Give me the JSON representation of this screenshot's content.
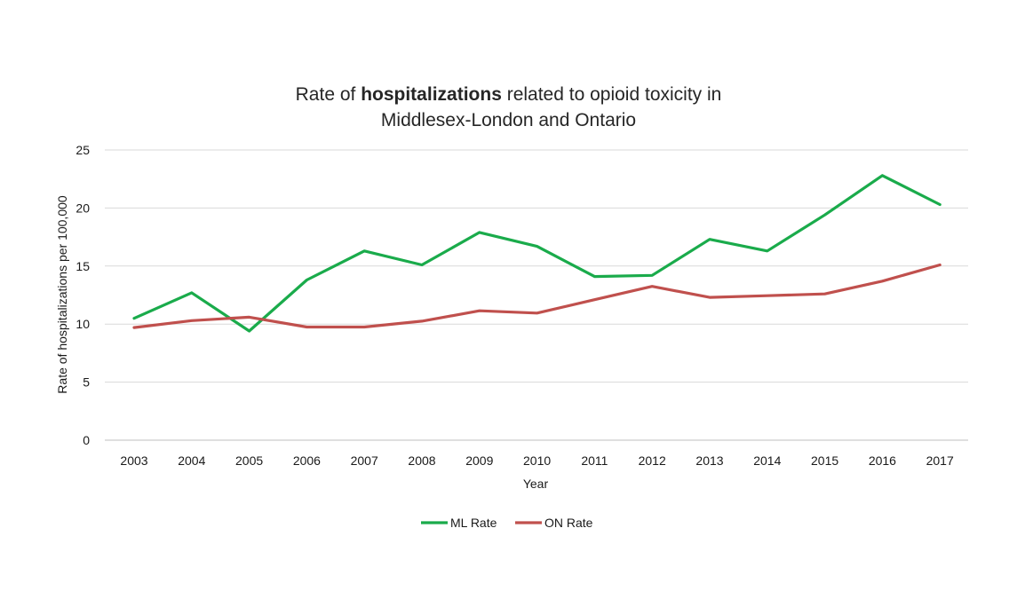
{
  "chart_data": {
    "type": "line",
    "title_parts": {
      "pre": "Rate of ",
      "bold": "hospitalizations",
      "post": " related to opioid toxicity in",
      "line2": "Middlesex-London and Ontario"
    },
    "xlabel": "Year",
    "ylabel": "Rate of hospitalizations per 100,000",
    "ylim": [
      0,
      25
    ],
    "yticks": [
      0,
      5,
      10,
      15,
      20,
      25
    ],
    "grid": true,
    "legend_position": "bottom",
    "categories": [
      "2003",
      "2004",
      "2005",
      "2006",
      "2007",
      "2008",
      "2009",
      "2010",
      "2011",
      "2012",
      "2013",
      "2014",
      "2015",
      "2016",
      "2017"
    ],
    "series": [
      {
        "name": "ML Rate",
        "color": "#1aab4b",
        "values": [
          10.5,
          12.7,
          9.4,
          13.8,
          16.3,
          15.1,
          17.9,
          16.7,
          14.1,
          14.2,
          17.3,
          16.3,
          19.4,
          22.8,
          20.3
        ]
      },
      {
        "name": "ON Rate",
        "color": "#c0504d",
        "values": [
          9.7,
          10.3,
          10.6,
          9.75,
          9.75,
          10.25,
          11.15,
          10.95,
          12.1,
          13.25,
          12.3,
          12.45,
          12.6,
          13.7,
          15.1
        ]
      }
    ]
  }
}
